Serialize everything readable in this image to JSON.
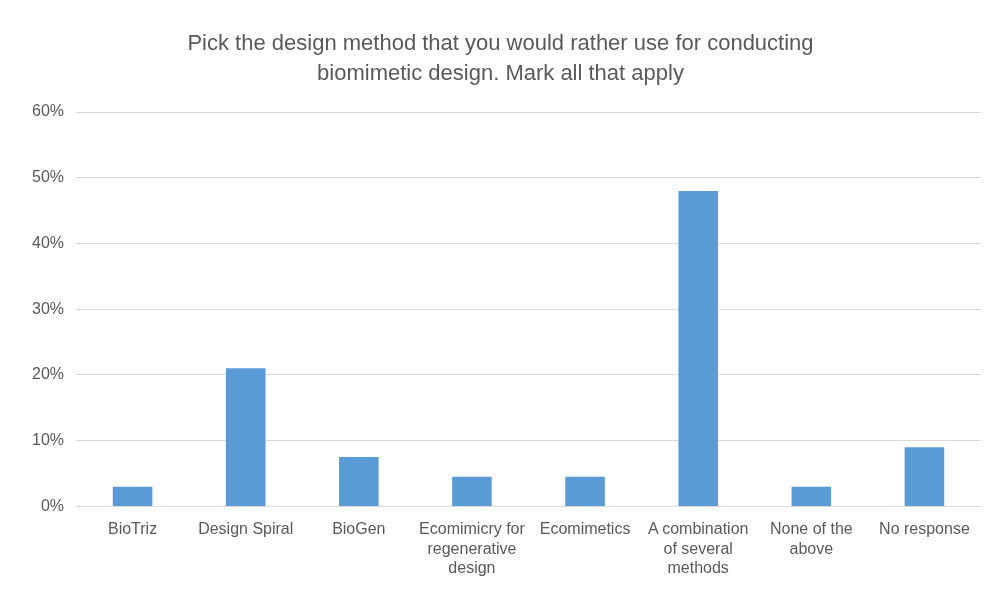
{
  "chart_data": {
    "type": "bar",
    "title": "Pick the design method that you would rather use for conducting biomimetic design. Mark all that apply",
    "categories": [
      "BioTriz",
      "Design Spiral",
      "BioGen",
      "Ecomimicry for regenerative design",
      "Ecomimetics",
      "A combination of several methods",
      "None of the above",
      "No response"
    ],
    "values": [
      3,
      21,
      7.5,
      4.5,
      4.5,
      48,
      3,
      9
    ],
    "color": "#5b9bd5",
    "ylim": [
      0,
      60
    ],
    "yticks": [
      {
        "value": 0,
        "label": "0%"
      },
      {
        "value": 10,
        "label": "10%"
      },
      {
        "value": 20,
        "label": "20%"
      },
      {
        "value": 30,
        "label": "30%"
      },
      {
        "value": 40,
        "label": "40%"
      },
      {
        "value": 50,
        "label": "50%"
      },
      {
        "value": 60,
        "label": "60%"
      }
    ],
    "grid": "y",
    "legend": false
  }
}
